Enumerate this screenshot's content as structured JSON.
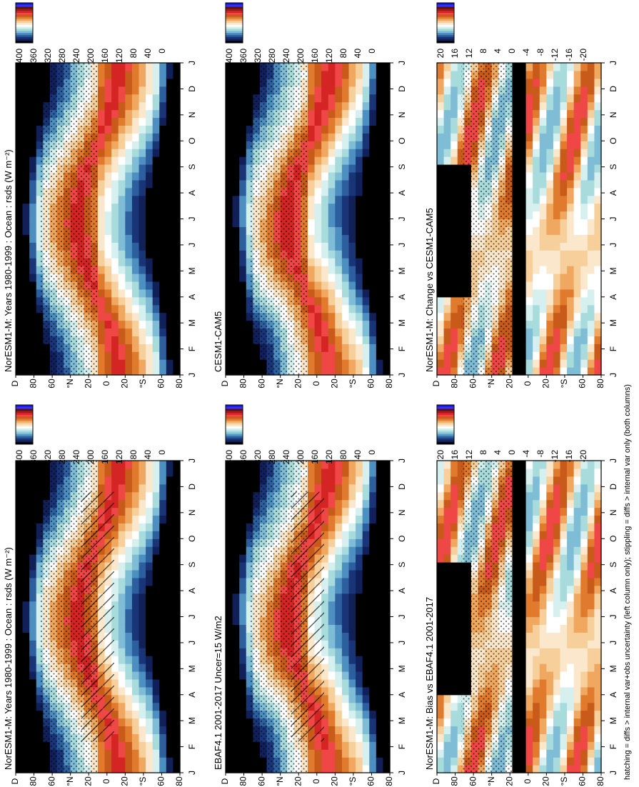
{
  "figure": {
    "footnote": "hatching = diffs > internal var+obs uncertainty (left column only); stippling = diffs > internal var only (both columns)"
  },
  "month_labels": [
    "J",
    "F",
    "M",
    "A",
    "M",
    "J",
    "J",
    "A",
    "S",
    "O",
    "N",
    "D",
    "J"
  ],
  "lat_labels": [
    "D",
    "80",
    "60",
    "°N",
    "20",
    "0",
    "20",
    "°S",
    "60",
    "80"
  ],
  "abs_colorbar": {
    "labels": [
      "400",
      "360",
      "320",
      "280",
      "240",
      "200",
      "160",
      "120",
      "80",
      "40",
      "0"
    ],
    "colors": [
      "#1a1ae6",
      "#3333ff",
      "#5b1010",
      "#9e1a1a",
      "#d42424",
      "#ef4646",
      "#c85a1a",
      "#e07b2e",
      "#f0a860",
      "#f6cf9a",
      "#fbe8cc",
      "#ffffff",
      "#d6f0f0",
      "#a8dcdc",
      "#7fbdd6",
      "#4d8fc0",
      "#2d5f9e",
      "#1a3478",
      "#12205a",
      "#000000"
    ],
    "range": [
      0,
      400
    ]
  },
  "diff_colorbar": {
    "labels": [
      "20",
      "16",
      "12",
      "8",
      "4",
      "0",
      "-4",
      "-8",
      "-12",
      "-16",
      "-20"
    ],
    "colors": [
      "#1a1ae6",
      "#3333ff",
      "#5b1010",
      "#9e1a1a",
      "#d42424",
      "#ef4646",
      "#c85a1a",
      "#e07b2e",
      "#f0a860",
      "#f6cf9a",
      "#fbe8cc",
      "#ffffff",
      "#d6f0f0",
      "#a8dcdc",
      "#7fbdd6",
      "#4d8fc0",
      "#2d5f9e",
      "#1a3478",
      "#12205a",
      "#000000"
    ],
    "range": [
      -20,
      20
    ]
  },
  "panels": [
    {
      "id": "top-left",
      "title": "NorESM1-M: Years 1980-1999 : Ocean : rsds (W m⁻²)",
      "kind": "absolute",
      "hatching": true,
      "stippling": true
    },
    {
      "id": "mid-left",
      "title": "EBAF4.1 2001-2017 Uncer=15 W/m2",
      "kind": "absolute",
      "hatching": true,
      "stippling": true
    },
    {
      "id": "bot-left",
      "title": "NorESM1-M: Bias vs EBAF4.1 2001-2017",
      "kind": "difference",
      "hatching": false,
      "stippling": true
    },
    {
      "id": "top-right",
      "title": "NorESM1-M: Years 1980-1999 : Ocean : rsds (W m⁻²)",
      "kind": "absolute",
      "hatching": false,
      "stippling": true
    },
    {
      "id": "mid-right",
      "title": "CESM1-CAM5",
      "kind": "absolute",
      "hatching": false,
      "stippling": true
    },
    {
      "id": "bot-right",
      "title": "NorESM1-M: Change vs CESM1-CAM5",
      "kind": "difference",
      "hatching": false,
      "stippling": true
    }
  ],
  "chart_data": [
    {
      "type": "heatmap",
      "panel": "top-left",
      "x": "month",
      "y": "latitude",
      "colorbar": "abs_colorbar"
    },
    {
      "type": "heatmap",
      "panel": "mid-left",
      "x": "month",
      "y": "latitude",
      "colorbar": "abs_colorbar"
    },
    {
      "type": "heatmap",
      "panel": "bot-left",
      "x": "month",
      "y": "latitude",
      "colorbar": "diff_colorbar"
    },
    {
      "type": "heatmap",
      "panel": "top-right",
      "x": "month",
      "y": "latitude",
      "colorbar": "abs_colorbar"
    },
    {
      "type": "heatmap",
      "panel": "mid-right",
      "x": "month",
      "y": "latitude",
      "colorbar": "abs_colorbar"
    },
    {
      "type": "heatmap",
      "panel": "bot-right",
      "x": "month",
      "y": "latitude",
      "colorbar": "diff_colorbar"
    }
  ]
}
